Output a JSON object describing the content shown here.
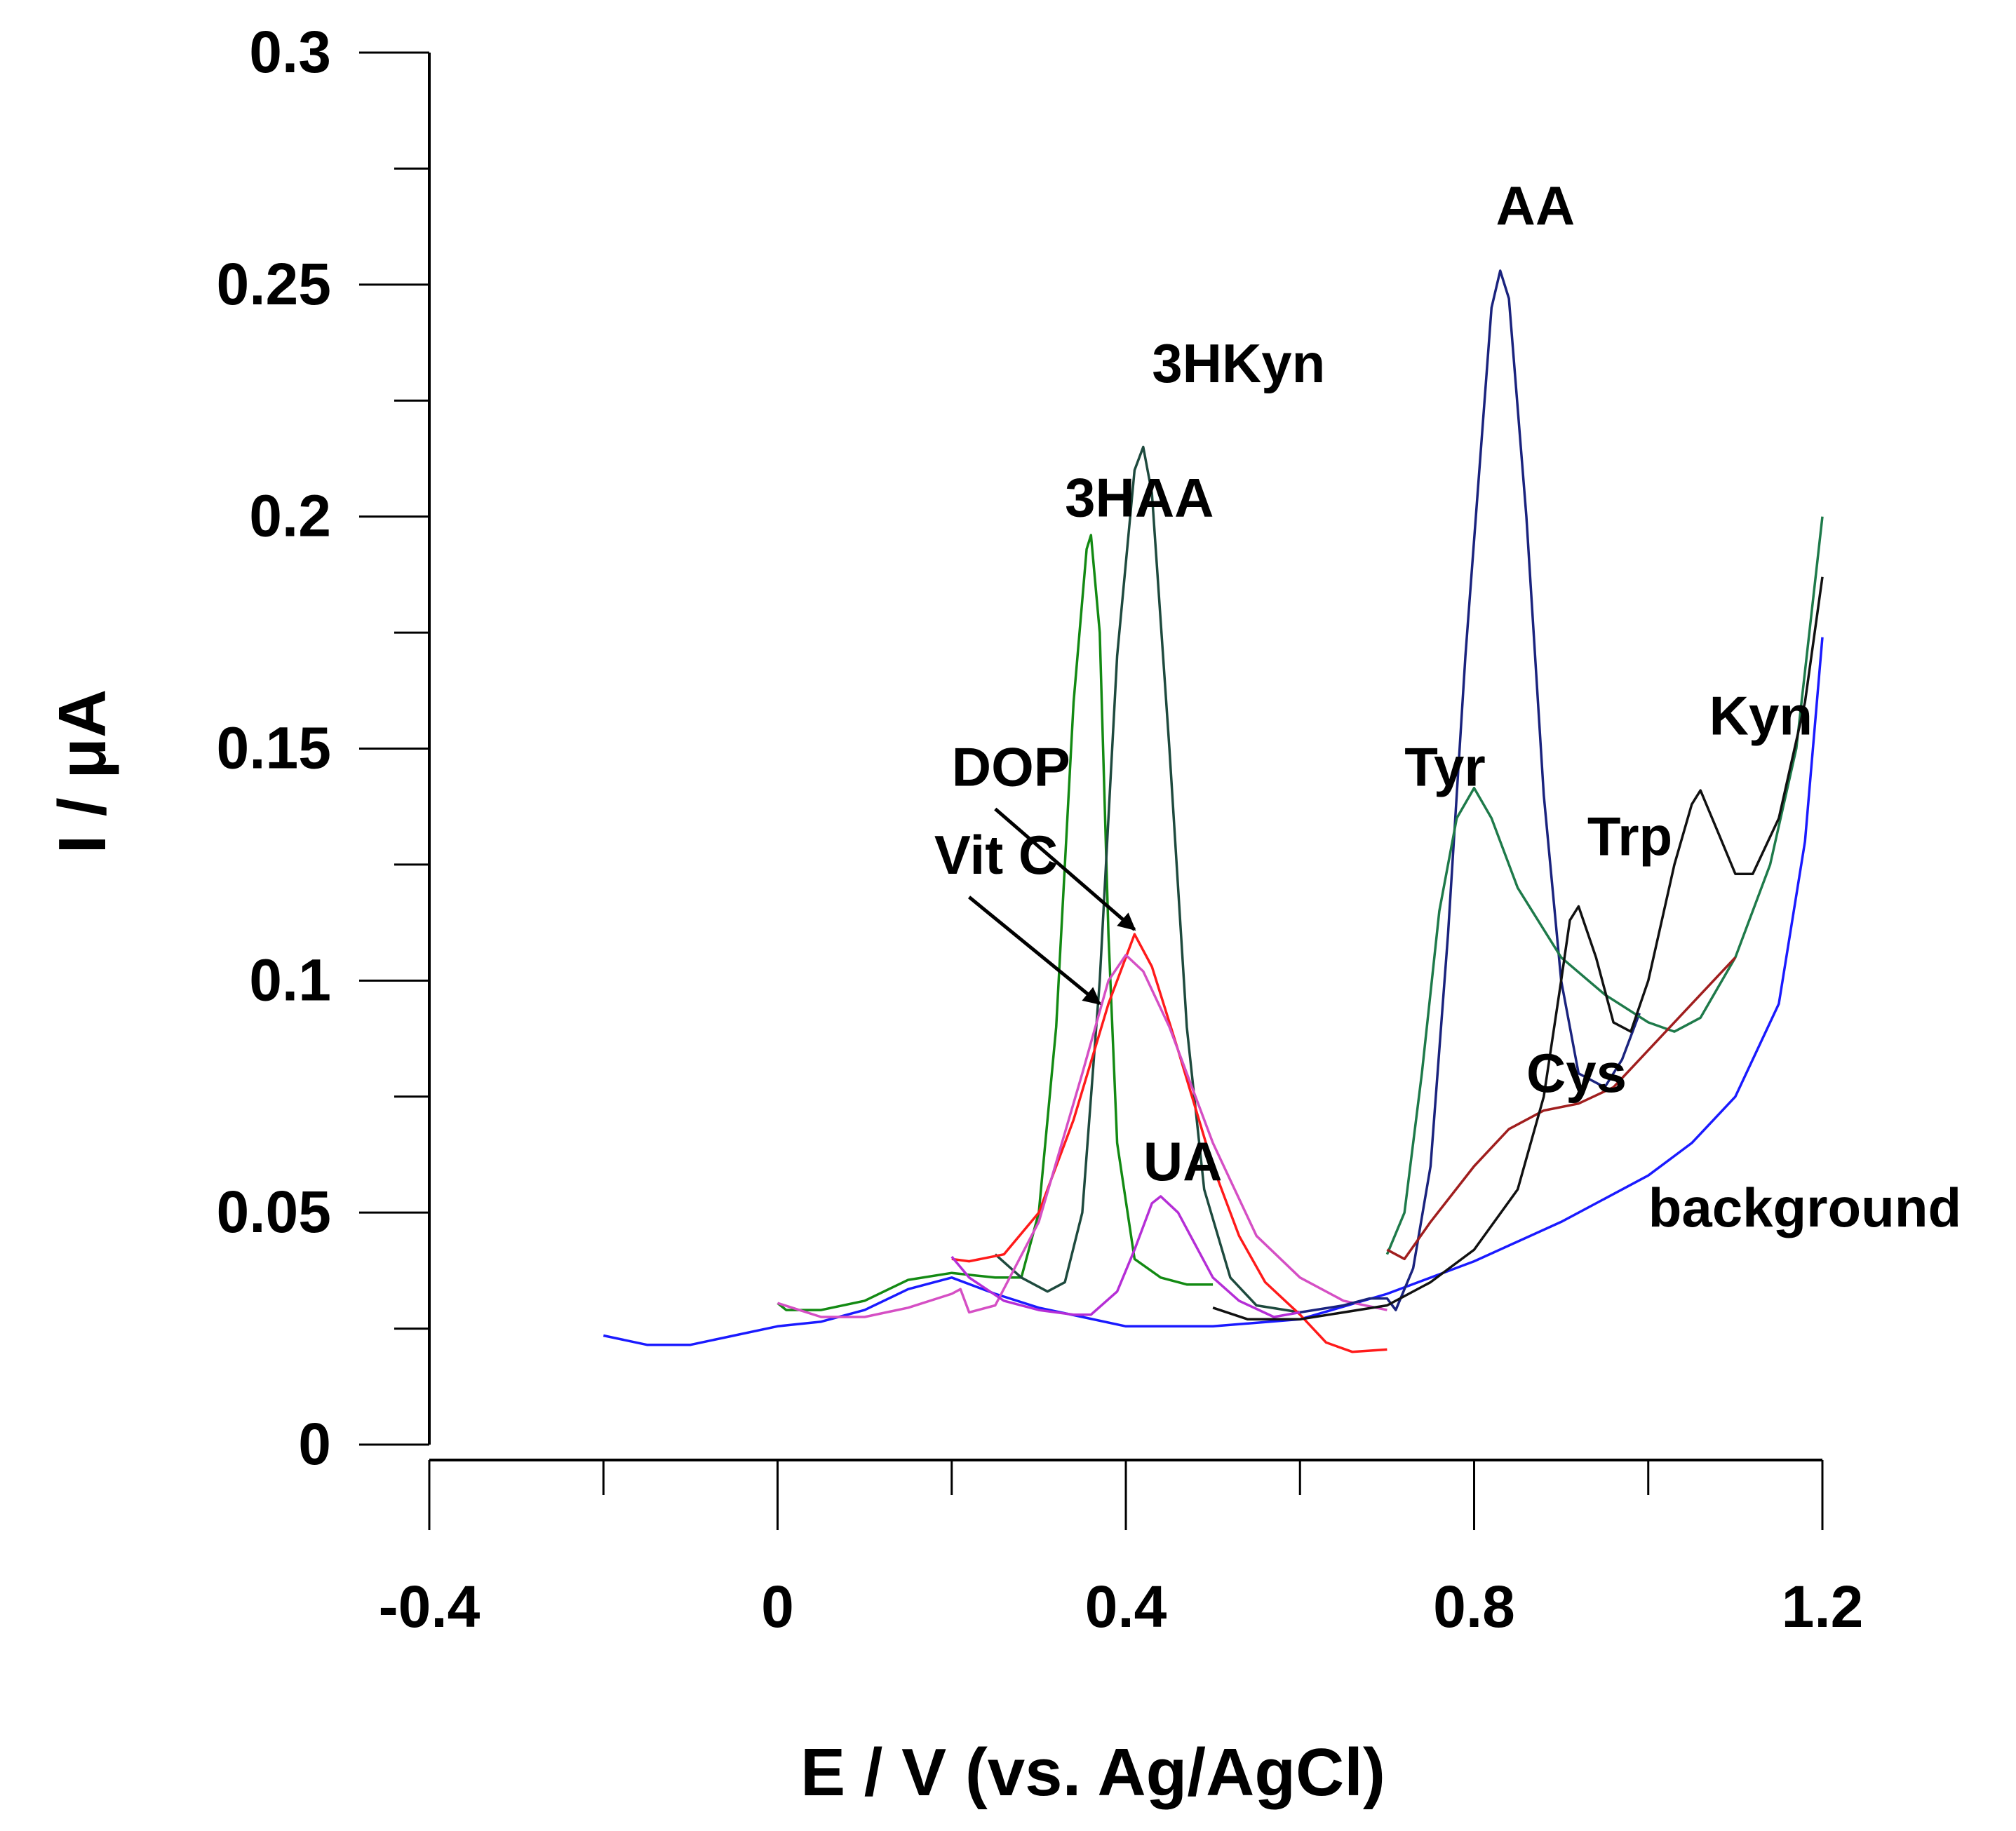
{
  "chart_data": {
    "type": "line",
    "title": "",
    "xlabel": "E / V (vs. Ag/AgCl)",
    "ylabel": "I / μA",
    "xlim": [
      -0.4,
      1.2
    ],
    "ylim": [
      0,
      0.3
    ],
    "x_ticks": [
      {
        "value": -0.4,
        "label": "-0.4"
      },
      {
        "value": 0,
        "label": "0"
      },
      {
        "value": 0.4,
        "label": "0.4"
      },
      {
        "value": 0.8,
        "label": "0.8"
      },
      {
        "value": 1.2,
        "label": "1.2"
      }
    ],
    "x_minor_ticks": [
      -0.2,
      0.2,
      0.6,
      1.0
    ],
    "y_ticks": [
      {
        "value": 0,
        "label": "0"
      },
      {
        "value": 0.05,
        "label": "0.05"
      },
      {
        "value": 0.1,
        "label": "0.1"
      },
      {
        "value": 0.15,
        "label": "0.15"
      },
      {
        "value": 0.2,
        "label": "0.2"
      },
      {
        "value": 0.25,
        "label": "0.25"
      },
      {
        "value": 0.3,
        "label": "0.3"
      }
    ],
    "y_minor_ticks": [
      0.025,
      0.075,
      0.125,
      0.175,
      0.225,
      0.275
    ],
    "series": [
      {
        "name": "background",
        "color": "#1a1aff",
        "points": [
          [
            -0.2,
            0.0235
          ],
          [
            -0.15,
            0.0215
          ],
          [
            -0.1,
            0.0215
          ],
          [
            -0.05,
            0.0235
          ],
          [
            0.0,
            0.0255
          ],
          [
            0.05,
            0.0265
          ],
          [
            0.1,
            0.029
          ],
          [
            0.15,
            0.0335
          ],
          [
            0.2,
            0.036
          ],
          [
            0.25,
            0.0325
          ],
          [
            0.3,
            0.0295
          ],
          [
            0.35,
            0.0275
          ],
          [
            0.4,
            0.0255
          ],
          [
            0.5,
            0.0255
          ],
          [
            0.6,
            0.027
          ],
          [
            0.7,
            0.0325
          ],
          [
            0.8,
            0.0395
          ],
          [
            0.9,
            0.048
          ],
          [
            1.0,
            0.058
          ],
          [
            1.05,
            0.065
          ],
          [
            1.1,
            0.075
          ],
          [
            1.15,
            0.095
          ],
          [
            1.18,
            0.13
          ],
          [
            1.2,
            0.174
          ]
        ]
      },
      {
        "name": "3HAA",
        "color": "#138a13",
        "points": [
          [
            0.0,
            0.0305
          ],
          [
            0.01,
            0.029
          ],
          [
            0.05,
            0.029
          ],
          [
            0.1,
            0.031
          ],
          [
            0.15,
            0.0355
          ],
          [
            0.2,
            0.037
          ],
          [
            0.25,
            0.036
          ],
          [
            0.28,
            0.036
          ],
          [
            0.3,
            0.05
          ],
          [
            0.32,
            0.09
          ],
          [
            0.34,
            0.16
          ],
          [
            0.355,
            0.193
          ],
          [
            0.36,
            0.196
          ],
          [
            0.37,
            0.175
          ],
          [
            0.38,
            0.11
          ],
          [
            0.39,
            0.065
          ],
          [
            0.41,
            0.04
          ],
          [
            0.44,
            0.036
          ],
          [
            0.47,
            0.0345
          ],
          [
            0.5,
            0.0345
          ]
        ]
      },
      {
        "name": "3HKyn",
        "color": "#1e4a3e",
        "points": [
          [
            0.25,
            0.041
          ],
          [
            0.28,
            0.036
          ],
          [
            0.31,
            0.033
          ],
          [
            0.33,
            0.035
          ],
          [
            0.35,
            0.05
          ],
          [
            0.37,
            0.1
          ],
          [
            0.39,
            0.17
          ],
          [
            0.41,
            0.21
          ],
          [
            0.42,
            0.215
          ],
          [
            0.43,
            0.205
          ],
          [
            0.45,
            0.15
          ],
          [
            0.47,
            0.09
          ],
          [
            0.49,
            0.055
          ],
          [
            0.52,
            0.036
          ],
          [
            0.55,
            0.03
          ],
          [
            0.6,
            0.0285
          ]
        ]
      },
      {
        "name": "DOP",
        "color": "#ff1a1a",
        "points": [
          [
            0.2,
            0.04
          ],
          [
            0.22,
            0.0395
          ],
          [
            0.26,
            0.041
          ],
          [
            0.3,
            0.05
          ],
          [
            0.34,
            0.07
          ],
          [
            0.38,
            0.095
          ],
          [
            0.4,
            0.105
          ],
          [
            0.41,
            0.11
          ],
          [
            0.43,
            0.103
          ],
          [
            0.46,
            0.085
          ],
          [
            0.5,
            0.06
          ],
          [
            0.53,
            0.045
          ],
          [
            0.56,
            0.035
          ],
          [
            0.6,
            0.028
          ],
          [
            0.63,
            0.022
          ],
          [
            0.66,
            0.02
          ],
          [
            0.7,
            0.0205
          ]
        ]
      },
      {
        "name": "Vit C",
        "color": "#d54fc4",
        "points": [
          [
            0.0,
            0.0305
          ],
          [
            0.05,
            0.0275
          ],
          [
            0.1,
            0.0275
          ],
          [
            0.15,
            0.0295
          ],
          [
            0.2,
            0.0325
          ],
          [
            0.21,
            0.0335
          ],
          [
            0.22,
            0.0285
          ],
          [
            0.25,
            0.03
          ],
          [
            0.3,
            0.048
          ],
          [
            0.35,
            0.08
          ],
          [
            0.38,
            0.1
          ],
          [
            0.4,
            0.1055
          ],
          [
            0.42,
            0.102
          ],
          [
            0.45,
            0.09
          ],
          [
            0.5,
            0.065
          ],
          [
            0.55,
            0.045
          ],
          [
            0.6,
            0.036
          ],
          [
            0.65,
            0.031
          ],
          [
            0.7,
            0.029
          ]
        ]
      },
      {
        "name": "UA",
        "color": "#b52ed6",
        "points": [
          [
            0.2,
            0.0405
          ],
          [
            0.22,
            0.036
          ],
          [
            0.26,
            0.031
          ],
          [
            0.3,
            0.029
          ],
          [
            0.34,
            0.028
          ],
          [
            0.36,
            0.028
          ],
          [
            0.39,
            0.033
          ],
          [
            0.41,
            0.042
          ],
          [
            0.43,
            0.052
          ],
          [
            0.44,
            0.0535
          ],
          [
            0.46,
            0.05
          ],
          [
            0.48,
            0.043
          ],
          [
            0.5,
            0.036
          ],
          [
            0.53,
            0.031
          ],
          [
            0.57,
            0.0275
          ],
          [
            0.6,
            0.0285
          ]
        ]
      },
      {
        "name": "AA",
        "color": "#1a237e",
        "points": [
          [
            0.6,
            0.0285
          ],
          [
            0.65,
            0.03
          ],
          [
            0.68,
            0.0315
          ],
          [
            0.7,
            0.0315
          ],
          [
            0.71,
            0.029
          ],
          [
            0.73,
            0.038
          ],
          [
            0.75,
            0.06
          ],
          [
            0.77,
            0.11
          ],
          [
            0.79,
            0.17
          ],
          [
            0.81,
            0.22
          ],
          [
            0.82,
            0.245
          ],
          [
            0.83,
            0.253
          ],
          [
            0.84,
            0.247
          ],
          [
            0.86,
            0.2
          ],
          [
            0.88,
            0.14
          ],
          [
            0.9,
            0.1
          ],
          [
            0.92,
            0.08
          ],
          [
            0.95,
            0.077
          ],
          [
            0.97,
            0.083
          ],
          [
            0.99,
            0.093
          ]
        ]
      },
      {
        "name": "Tyr",
        "color": "#1e7a4a",
        "points": [
          [
            0.7,
            0.041
          ],
          [
            0.72,
            0.05
          ],
          [
            0.74,
            0.08
          ],
          [
            0.76,
            0.115
          ],
          [
            0.78,
            0.135
          ],
          [
            0.8,
            0.1415
          ],
          [
            0.82,
            0.135
          ],
          [
            0.85,
            0.12
          ],
          [
            0.9,
            0.105
          ],
          [
            0.95,
            0.097
          ],
          [
            1.0,
            0.091
          ],
          [
            1.03,
            0.089
          ],
          [
            1.06,
            0.092
          ],
          [
            1.1,
            0.105
          ],
          [
            1.14,
            0.125
          ],
          [
            1.17,
            0.15
          ],
          [
            1.2,
            0.2
          ]
        ]
      },
      {
        "name": "Cys",
        "color": "#a01e1e",
        "points": [
          [
            0.7,
            0.042
          ],
          [
            0.72,
            0.04
          ],
          [
            0.75,
            0.048
          ],
          [
            0.8,
            0.06
          ],
          [
            0.84,
            0.068
          ],
          [
            0.88,
            0.072
          ],
          [
            0.92,
            0.0735
          ],
          [
            0.96,
            0.077
          ],
          [
            1.0,
            0.085
          ],
          [
            1.05,
            0.095
          ],
          [
            1.08,
            0.101
          ],
          [
            1.1,
            0.105
          ]
        ]
      },
      {
        "name": "Trp",
        "color": "#111111",
        "points": [
          [
            0.5,
            0.0295
          ],
          [
            0.54,
            0.027
          ],
          [
            0.6,
            0.027
          ],
          [
            0.7,
            0.03
          ],
          [
            0.75,
            0.035
          ],
          [
            0.8,
            0.042
          ],
          [
            0.85,
            0.055
          ],
          [
            0.88,
            0.075
          ],
          [
            0.9,
            0.1
          ],
          [
            0.91,
            0.113
          ],
          [
            0.92,
            0.116
          ],
          [
            0.94,
            0.105
          ],
          [
            0.96,
            0.091
          ],
          [
            0.98,
            0.089
          ],
          [
            1.0,
            0.1
          ],
          [
            1.03,
            0.125
          ],
          [
            1.05,
            0.138
          ],
          [
            1.06,
            0.141
          ],
          [
            1.08,
            0.132
          ],
          [
            1.1,
            0.123
          ],
          [
            1.12,
            0.123
          ],
          [
            1.15,
            0.135
          ],
          [
            1.18,
            0.16
          ],
          [
            1.2,
            0.187
          ]
        ]
      }
    ],
    "annotations": [
      {
        "text": "AA",
        "x": 0.825,
        "y": 0.263
      },
      {
        "text": "3HKyn",
        "x": 0.43,
        "y": 0.229
      },
      {
        "text": "3HAA",
        "x": 0.33,
        "y": 0.2
      },
      {
        "text": "DOP",
        "x": 0.2,
        "y": 0.142
      },
      {
        "text": "Vit C",
        "x": 0.18,
        "y": 0.123
      },
      {
        "text": "Tyr",
        "x": 0.72,
        "y": 0.142
      },
      {
        "text": "Trp",
        "x": 0.93,
        "y": 0.127
      },
      {
        "text": "Kyn",
        "x": 1.07,
        "y": 0.153
      },
      {
        "text": "Cys",
        "x": 0.86,
        "y": 0.076
      },
      {
        "text": "UA",
        "x": 0.42,
        "y": 0.057
      },
      {
        "text": "background",
        "x": 1.0,
        "y": 0.047
      }
    ],
    "arrows": [
      {
        "name": "DOP",
        "from": [
          0.25,
          0.137
        ],
        "to": [
          0.41,
          0.111
        ]
      },
      {
        "name": "Vit C",
        "from": [
          0.22,
          0.118
        ],
        "to": [
          0.37,
          0.095
        ]
      }
    ]
  }
}
